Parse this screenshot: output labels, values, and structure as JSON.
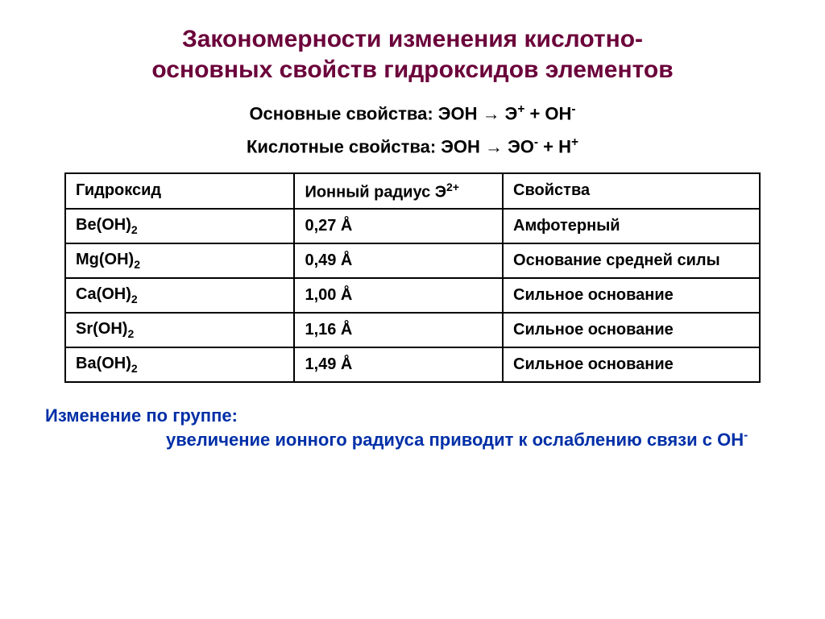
{
  "title_line1": "Закономерности изменения кислотно-",
  "title_line2": "основных свойств гидроксидов элементов",
  "eq_basic_label": "Основные свойства: ЭОН → Э",
  "eq_basic_sup1": "+",
  "eq_basic_mid": " + ОН",
  "eq_basic_sup2": "-",
  "eq_acid_label": "Кислотные свойства: ЭОН → ЭО",
  "eq_acid_sup1": "-",
  "eq_acid_mid": "  + Н",
  "eq_acid_sup2": "+",
  "table": {
    "header": {
      "c1": "Гидроксид",
      "c2_a": "Ионный радиус Э",
      "c2_sup": "2+",
      "c3": "Свойства"
    },
    "rows": [
      {
        "c1a": "Be(OH)",
        "c1sub": "2",
        "c2": "0,27 Å",
        "c3": "Амфотерный"
      },
      {
        "c1a": "Mg(OH)",
        "c1sub": "2",
        "c2": "0,49 Å",
        "c3": "Основание средней силы"
      },
      {
        "c1a": "Ca(OH)",
        "c1sub": "2",
        "c2": "1,00 Å",
        "c3": "Сильное основание"
      },
      {
        "c1a": "Sr(OH)",
        "c1sub": "2",
        "c2": "1,16 Å",
        "c3": "Сильное основание"
      },
      {
        "c1a": "Ba(OH)",
        "c1sub": "2",
        "c2": "1,49 Å",
        "c3": "Сильное основание"
      }
    ]
  },
  "footer_lead": "Изменение по группе:",
  "footer_text_a": "увеличение ионного радиуса приводит к ослаблению связи с ОН",
  "footer_sup": "-",
  "colors": {
    "title": "#6b003a",
    "footer_lead": "#002fa7",
    "text": "#000000",
    "border": "#000000",
    "background": "#ffffff"
  }
}
